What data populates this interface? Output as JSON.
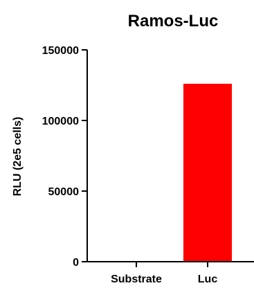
{
  "chart_data": {
    "type": "bar",
    "title": "Ramos-Luc",
    "ylabel": "RLU (2e5 cells)",
    "xlabel": "",
    "categories": [
      "Substrate",
      "Luc"
    ],
    "values": [
      0,
      126000
    ],
    "ylim": [
      0,
      150000
    ],
    "yticks": [
      0,
      50000,
      100000,
      150000
    ],
    "ytick_labels": [
      "0",
      "50000",
      "100000",
      "150000"
    ],
    "bar_colors": [
      "#ff0000",
      "#ff0000"
    ],
    "grid": false
  }
}
